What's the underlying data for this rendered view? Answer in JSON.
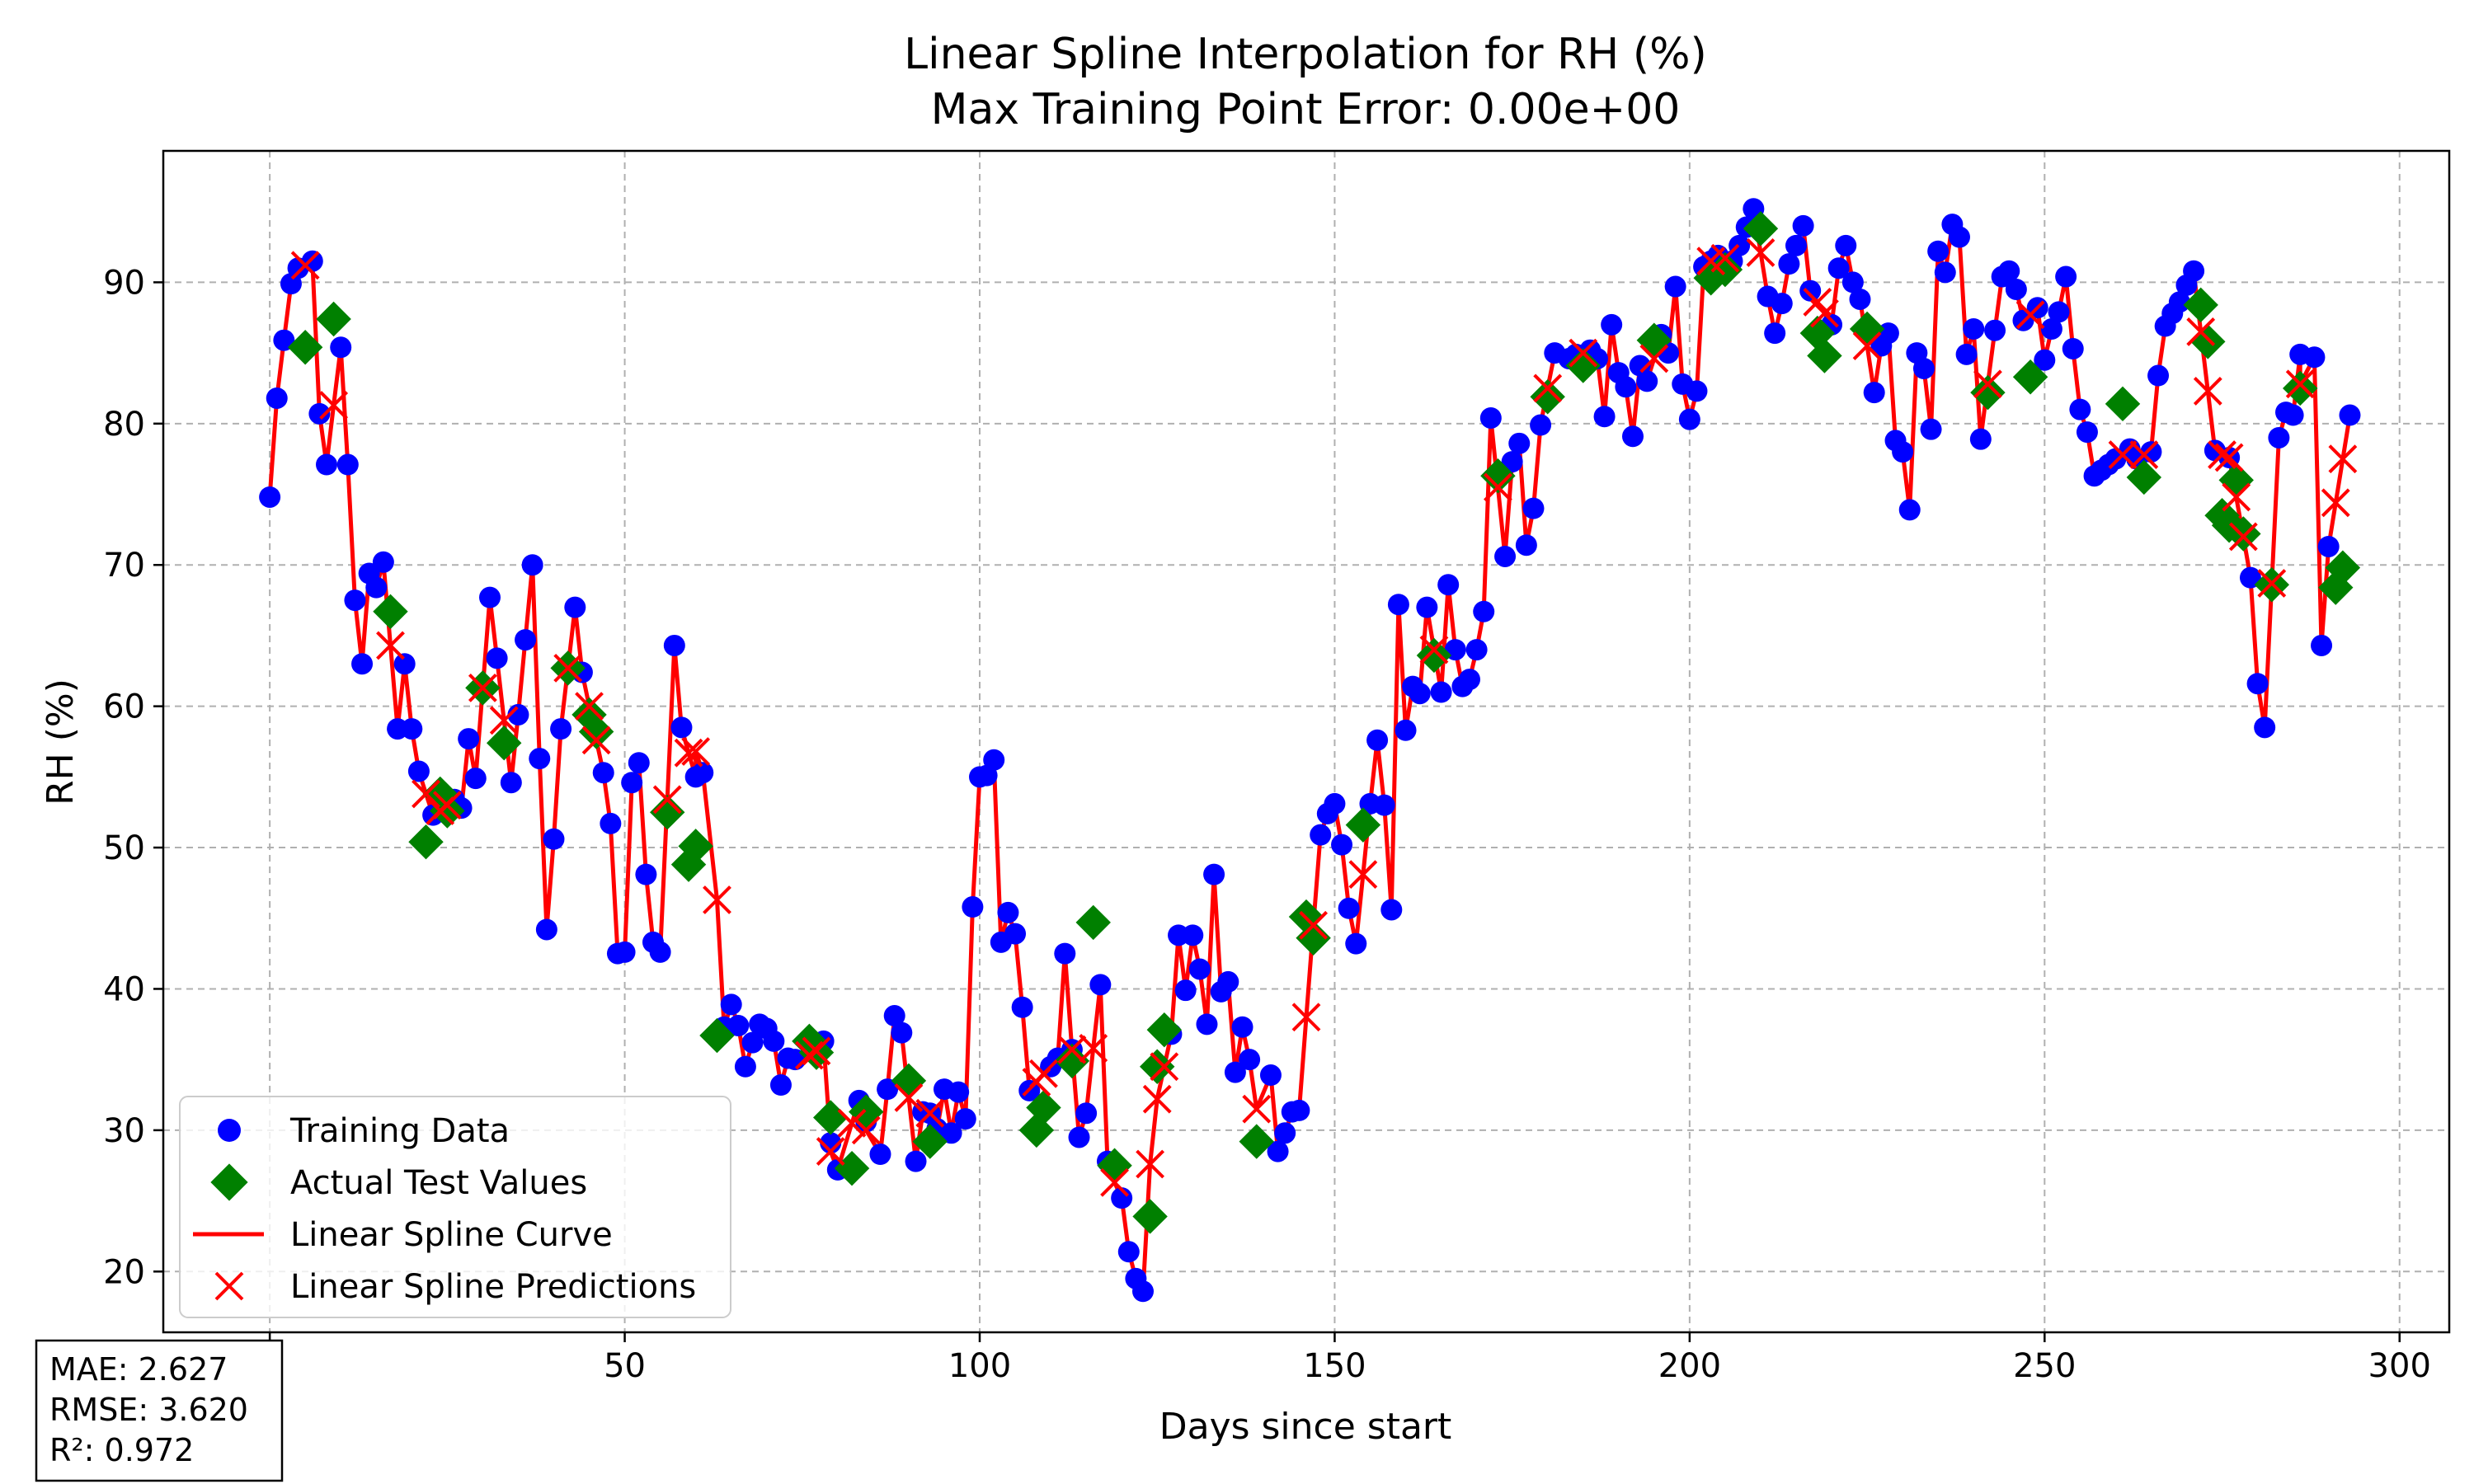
{
  "chart_data": {
    "type": "line",
    "title": "Linear Spline Interpolation for RH (%)",
    "subtitle": "Max Training Point Error: 0.00e+00",
    "xlabel": "Days since start",
    "ylabel": "RH (%)",
    "xlim": [
      -15,
      307
    ],
    "ylim": [
      15.7,
      99.3
    ],
    "xticks": [
      0,
      50,
      100,
      150,
      200,
      250,
      300
    ],
    "yticks": [
      20,
      30,
      40,
      50,
      60,
      70,
      80,
      90
    ],
    "grid": true,
    "legend_position": "lower-left",
    "legend": [
      "Training Data",
      "Actual Test Values",
      "Linear Spline Curve",
      "Linear Spline Predictions"
    ],
    "colors": {
      "training": "#0000ff",
      "test": "#008000",
      "spline": "#ff0000",
      "prediction": "#ff0000",
      "grid": "#b0b0b0"
    },
    "metrics": {
      "mae": "MAE: 2.627",
      "rmse": "RMSE: 3.620",
      "r2": "R²: 0.972"
    },
    "training": [
      [
        0,
        74.8
      ],
      [
        1,
        81.8
      ],
      [
        2,
        85.9
      ],
      [
        3,
        89.9
      ],
      [
        4,
        91.0
      ],
      [
        6,
        91.5
      ],
      [
        7,
        80.7
      ],
      [
        8,
        77.1
      ],
      [
        10,
        85.4
      ],
      [
        11,
        77.1
      ],
      [
        12,
        67.5
      ],
      [
        13,
        63.0
      ],
      [
        14,
        69.4
      ],
      [
        15,
        68.4
      ],
      [
        16,
        70.2
      ],
      [
        18,
        58.4
      ],
      [
        19,
        63.0
      ],
      [
        20,
        58.4
      ],
      [
        21,
        55.4
      ],
      [
        23,
        52.3
      ],
      [
        26,
        53.4
      ],
      [
        27,
        52.8
      ],
      [
        28,
        57.7
      ],
      [
        29,
        54.9
      ],
      [
        31,
        67.7
      ],
      [
        32,
        63.4
      ],
      [
        34,
        54.6
      ],
      [
        35,
        59.4
      ],
      [
        36,
        64.7
      ],
      [
        37,
        70.0
      ],
      [
        38,
        56.3
      ],
      [
        39,
        44.2
      ],
      [
        40,
        50.6
      ],
      [
        41,
        58.4
      ],
      [
        43,
        67.0
      ],
      [
        44,
        62.4
      ],
      [
        47,
        55.3
      ],
      [
        48,
        51.7
      ],
      [
        49,
        42.5
      ],
      [
        50,
        42.6
      ],
      [
        51,
        54.6
      ],
      [
        52,
        56.0
      ],
      [
        53,
        48.1
      ],
      [
        54,
        43.3
      ],
      [
        55,
        42.6
      ],
      [
        57,
        64.3
      ],
      [
        58,
        58.5
      ],
      [
        60,
        55.0
      ],
      [
        61,
        55.3
      ],
      [
        64,
        37.3
      ],
      [
        65,
        38.9
      ],
      [
        66,
        37.4
      ],
      [
        67,
        34.5
      ],
      [
        68,
        36.2
      ],
      [
        69,
        37.5
      ],
      [
        70,
        37.2
      ],
      [
        71,
        36.3
      ],
      [
        72,
        33.2
      ],
      [
        73,
        35.1
      ],
      [
        74,
        35.0
      ],
      [
        77,
        35.6
      ],
      [
        78,
        36.3
      ],
      [
        79,
        29.1
      ],
      [
        80,
        27.2
      ],
      [
        83,
        32.1
      ],
      [
        84,
        30.6
      ],
      [
        86,
        28.3
      ],
      [
        87,
        32.9
      ],
      [
        88,
        38.1
      ],
      [
        89,
        36.9
      ],
      [
        91,
        27.8
      ],
      [
        92,
        31.3
      ],
      [
        93,
        31.2
      ],
      [
        94,
        30.1
      ],
      [
        95,
        32.9
      ],
      [
        96,
        29.8
      ],
      [
        97,
        32.7
      ],
      [
        98,
        30.8
      ],
      [
        99,
        45.8
      ],
      [
        100,
        55.0
      ],
      [
        101,
        55.1
      ],
      [
        102,
        56.2
      ],
      [
        103,
        43.3
      ],
      [
        104,
        45.4
      ],
      [
        105,
        43.9
      ],
      [
        106,
        38.7
      ],
      [
        107,
        32.8
      ],
      [
        110,
        34.5
      ],
      [
        111,
        35.1
      ],
      [
        112,
        42.5
      ],
      [
        113,
        35.7
      ],
      [
        114,
        29.5
      ],
      [
        115,
        31.2
      ],
      [
        117,
        40.3
      ],
      [
        118,
        27.8
      ],
      [
        119,
        27.4
      ],
      [
        120,
        25.2
      ],
      [
        121,
        21.4
      ],
      [
        122,
        19.5
      ],
      [
        123,
        18.6
      ],
      [
        127,
        36.8
      ],
      [
        128,
        43.8
      ],
      [
        129,
        39.9
      ],
      [
        130,
        43.8
      ],
      [
        131,
        41.4
      ],
      [
        132,
        37.5
      ],
      [
        133,
        48.1
      ],
      [
        134,
        39.8
      ],
      [
        135,
        40.5
      ],
      [
        136,
        34.1
      ],
      [
        137,
        37.3
      ],
      [
        138,
        35.0
      ],
      [
        141,
        33.9
      ],
      [
        142,
        28.5
      ],
      [
        143,
        29.8
      ],
      [
        144,
        31.3
      ],
      [
        145,
        31.4
      ],
      [
        148,
        50.9
      ],
      [
        149,
        52.4
      ],
      [
        150,
        53.1
      ],
      [
        151,
        50.2
      ],
      [
        152,
        45.7
      ],
      [
        153,
        43.2
      ],
      [
        155,
        53.1
      ],
      [
        156,
        57.6
      ],
      [
        157,
        53.0
      ],
      [
        158,
        45.6
      ],
      [
        159,
        67.2
      ],
      [
        160,
        58.3
      ],
      [
        161,
        61.4
      ],
      [
        162,
        60.9
      ],
      [
        163,
        67.0
      ],
      [
        165,
        61.0
      ],
      [
        166,
        68.6
      ],
      [
        167,
        64.0
      ],
      [
        168,
        61.4
      ],
      [
        169,
        61.9
      ],
      [
        170,
        64.0
      ],
      [
        171,
        66.7
      ],
      [
        172,
        80.4
      ],
      [
        174,
        70.6
      ],
      [
        175,
        77.3
      ],
      [
        176,
        78.6
      ],
      [
        177,
        71.4
      ],
      [
        178,
        74.0
      ],
      [
        179,
        79.9
      ],
      [
        181,
        85.0
      ],
      [
        183,
        84.6
      ],
      [
        184,
        84.9
      ],
      [
        186,
        85.2
      ],
      [
        187,
        84.6
      ],
      [
        188,
        80.5
      ],
      [
        189,
        87.0
      ],
      [
        190,
        83.6
      ],
      [
        191,
        82.6
      ],
      [
        192,
        79.1
      ],
      [
        193,
        84.1
      ],
      [
        194,
        83.0
      ],
      [
        196,
        86.3
      ],
      [
        197,
        85.0
      ],
      [
        198,
        89.7
      ],
      [
        199,
        82.8
      ],
      [
        200,
        80.3
      ],
      [
        201,
        82.3
      ],
      [
        202,
        91.1
      ],
      [
        203,
        91.5
      ],
      [
        204,
        91.9
      ],
      [
        206,
        91.5
      ],
      [
        207,
        92.6
      ],
      [
        208,
        93.9
      ],
      [
        209,
        95.2
      ],
      [
        211,
        89.0
      ],
      [
        212,
        86.4
      ],
      [
        213,
        88.5
      ],
      [
        214,
        91.3
      ],
      [
        215,
        92.6
      ],
      [
        216,
        94.0
      ],
      [
        217,
        89.4
      ],
      [
        220,
        87.0
      ],
      [
        221,
        91.0
      ],
      [
        222,
        92.6
      ],
      [
        223,
        90.0
      ],
      [
        224,
        88.8
      ],
      [
        226,
        82.2
      ],
      [
        227,
        85.5
      ],
      [
        228,
        86.4
      ],
      [
        229,
        78.8
      ],
      [
        230,
        78.0
      ],
      [
        231,
        73.9
      ],
      [
        232,
        85.0
      ],
      [
        233,
        83.9
      ],
      [
        234,
        79.6
      ],
      [
        235,
        92.2
      ],
      [
        236,
        90.7
      ],
      [
        237,
        94.1
      ],
      [
        238,
        93.2
      ],
      [
        239,
        84.9
      ],
      [
        240,
        86.7
      ],
      [
        241,
        78.9
      ],
      [
        243,
        86.6
      ],
      [
        244,
        90.4
      ],
      [
        245,
        90.8
      ],
      [
        246,
        89.5
      ],
      [
        247,
        87.3
      ],
      [
        249,
        88.2
      ],
      [
        250,
        84.5
      ],
      [
        251,
        86.7
      ],
      [
        252,
        87.9
      ],
      [
        253,
        90.4
      ],
      [
        254,
        85.3
      ],
      [
        255,
        81.0
      ],
      [
        256,
        79.4
      ],
      [
        257,
        76.3
      ],
      [
        258,
        76.7
      ],
      [
        259,
        77.1
      ],
      [
        260,
        77.5
      ],
      [
        262,
        78.2
      ],
      [
        263,
        77.5
      ],
      [
        265,
        78.0
      ],
      [
        266,
        83.4
      ],
      [
        267,
        86.9
      ],
      [
        268,
        87.8
      ],
      [
        269,
        88.6
      ],
      [
        270,
        89.8
      ],
      [
        271,
        90.8
      ],
      [
        274,
        78.1
      ],
      [
        276,
        77.6
      ],
      [
        279,
        69.1
      ],
      [
        280,
        61.6
      ],
      [
        281,
        58.5
      ],
      [
        283,
        79.0
      ],
      [
        284,
        80.8
      ],
      [
        285,
        80.6
      ],
      [
        286,
        84.9
      ],
      [
        288,
        84.7
      ],
      [
        289,
        64.3
      ],
      [
        290,
        71.3
      ],
      [
        293,
        80.6
      ]
    ],
    "test_actual": [
      [
        5,
        85.4
      ],
      [
        9,
        87.4
      ],
      [
        17,
        66.7
      ],
      [
        22,
        50.4
      ],
      [
        24,
        53.8
      ],
      [
        25,
        52.6
      ],
      [
        30,
        61.3
      ],
      [
        33,
        57.4
      ],
      [
        42,
        62.7
      ],
      [
        45,
        59.4
      ],
      [
        46,
        58.2
      ],
      [
        56,
        52.5
      ],
      [
        59,
        48.8
      ],
      [
        60,
        50.1
      ],
      [
        63,
        36.7
      ],
      [
        76,
        36.3
      ],
      [
        77,
        35.5
      ],
      [
        79,
        30.9
      ],
      [
        82,
        27.3
      ],
      [
        84,
        31.3
      ],
      [
        90,
        33.5
      ],
      [
        93,
        29.2
      ],
      [
        108,
        30.0
      ],
      [
        109,
        31.6
      ],
      [
        113,
        34.9
      ],
      [
        116,
        44.7
      ],
      [
        119,
        27.5
      ],
      [
        124,
        23.9
      ],
      [
        125,
        34.5
      ],
      [
        126,
        37.1
      ],
      [
        139,
        29.2
      ],
      [
        146,
        45.1
      ],
      [
        147,
        43.6
      ],
      [
        154,
        51.6
      ],
      [
        164,
        63.6
      ],
      [
        173,
        76.3
      ],
      [
        180,
        81.9
      ],
      [
        185,
        84.1
      ],
      [
        195,
        85.9
      ],
      [
        203,
        90.3
      ],
      [
        205,
        90.9
      ],
      [
        210,
        93.8
      ],
      [
        218,
        86.4
      ],
      [
        219,
        84.8
      ],
      [
        225,
        86.7
      ],
      [
        242,
        82.2
      ],
      [
        248,
        83.3
      ],
      [
        261,
        81.4
      ],
      [
        264,
        76.2
      ],
      [
        272,
        88.4
      ],
      [
        273,
        85.8
      ],
      [
        275,
        73.5
      ],
      [
        276,
        72.8
      ],
      [
        277,
        76.0
      ],
      [
        278,
        72.2
      ],
      [
        282,
        68.6
      ],
      [
        286,
        82.5
      ],
      [
        291,
        68.4
      ],
      [
        292,
        69.8
      ]
    ],
    "test_predicted": [
      [
        5,
        91.2
      ],
      [
        9,
        81.3
      ],
      [
        17,
        64.3
      ],
      [
        22,
        53.8
      ],
      [
        24,
        52.6
      ],
      [
        25,
        53.0
      ],
      [
        30,
        61.3
      ],
      [
        33,
        59.0
      ],
      [
        42,
        62.7
      ],
      [
        45,
        60.0
      ],
      [
        46,
        57.6
      ],
      [
        56,
        53.4
      ],
      [
        59,
        56.7
      ],
      [
        60,
        56.8
      ],
      [
        63,
        46.3
      ],
      [
        76,
        35.3
      ],
      [
        77,
        35.6
      ],
      [
        79,
        28.5
      ],
      [
        82,
        30.5
      ],
      [
        84,
        30.0
      ],
      [
        90,
        32.3
      ],
      [
        93,
        31.2
      ],
      [
        108,
        33.4
      ],
      [
        109,
        34.0
      ],
      [
        113,
        35.7
      ],
      [
        116,
        35.8
      ],
      [
        119,
        26.3
      ],
      [
        124,
        27.6
      ],
      [
        125,
        32.2
      ],
      [
        126,
        34.5
      ],
      [
        139,
        31.5
      ],
      [
        146,
        38.0
      ],
      [
        147,
        44.5
      ],
      [
        154,
        48.1
      ],
      [
        164,
        64.0
      ],
      [
        173,
        75.5
      ],
      [
        180,
        82.5
      ],
      [
        185,
        85.0
      ],
      [
        195,
        84.6
      ],
      [
        203,
        91.5
      ],
      [
        205,
        91.7
      ],
      [
        210,
        92.1
      ],
      [
        218,
        88.6
      ],
      [
        219,
        87.8
      ],
      [
        225,
        85.5
      ],
      [
        242,
        82.8
      ],
      [
        248,
        87.7
      ],
      [
        261,
        77.8
      ],
      [
        264,
        77.8
      ],
      [
        272,
        86.5
      ],
      [
        273,
        82.3
      ],
      [
        275,
        77.8
      ],
      [
        276,
        77.6
      ],
      [
        277,
        74.8
      ],
      [
        278,
        72.0
      ],
      [
        282,
        68.7
      ],
      [
        286,
        82.8
      ],
      [
        291,
        74.4
      ],
      [
        292,
        77.5
      ]
    ]
  }
}
